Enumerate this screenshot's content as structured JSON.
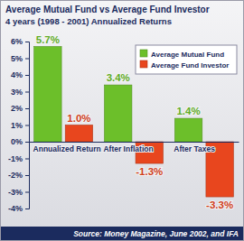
{
  "chart_data": {
    "type": "bar",
    "title": "Average Mutual Fund vs Average Fund Investor",
    "subtitle": "4 years (1998 - 2001) Annualized Returns",
    "categories": [
      "Annualized Return",
      "After Inflation",
      "After Taxes"
    ],
    "series": [
      {
        "name": "Average Mutual Fund",
        "color": "#6cbf2a",
        "values": [
          5.7,
          3.4,
          1.4
        ],
        "value_labels": [
          "5.7%",
          "3.4%",
          "1.4%"
        ]
      },
      {
        "name": "Average Fund Investor",
        "color": "#e8461e",
        "values": [
          1.0,
          -1.3,
          -3.3
        ],
        "value_labels": [
          "1.0%",
          "-1.3%",
          "-3.3%"
        ]
      }
    ],
    "ylim": [
      -4,
      6
    ],
    "yticks": [
      {
        "value": -4,
        "label": "-4%"
      },
      {
        "value": -3,
        "label": "-3%"
      },
      {
        "value": -2,
        "label": "-2%"
      },
      {
        "value": -1,
        "label": "-1%"
      },
      {
        "value": 0,
        "label": "0%"
      },
      {
        "value": 1,
        "label": "1%"
      },
      {
        "value": 2,
        "label": "2%"
      },
      {
        "value": 3,
        "label": "3%"
      },
      {
        "value": 4,
        "label": "4%"
      },
      {
        "value": 5,
        "label": "5%"
      },
      {
        "value": 6,
        "label": "6%"
      }
    ],
    "grid": false,
    "legend": "upper right",
    "data_labels": true,
    "annotations": [
      "Source: Money Magazine, June 2002, and IFA"
    ]
  }
}
